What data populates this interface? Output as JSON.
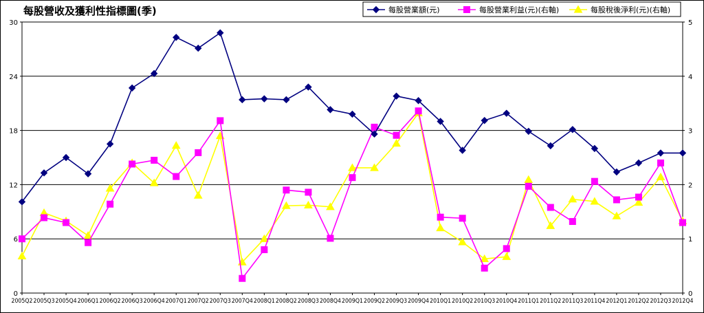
{
  "chart_data": {
    "type": "line",
    "title": "每股營收及獲利性指標圖(季)",
    "categories": [
      "2005Q2",
      "2005Q3",
      "2005Q4",
      "2006Q1",
      "2006Q2",
      "2006Q3",
      "2006Q4",
      "2007Q1",
      "2007Q2",
      "2007Q3",
      "2007Q4",
      "2008Q1",
      "2008Q2",
      "2008Q3",
      "2008Q4",
      "2009Q1",
      "2009Q2",
      "2009Q3",
      "2009Q4",
      "2010Q1",
      "2010Q2",
      "2010Q3",
      "2010Q4",
      "2011Q1",
      "2011Q2",
      "2011Q3",
      "2011Q4",
      "2012Q1",
      "2012Q2",
      "2012Q3",
      "2012Q4"
    ],
    "y_left": {
      "min": 0,
      "max": 30,
      "ticks": [
        0,
        6,
        12,
        18,
        24,
        30
      ]
    },
    "y_right": {
      "min": 0,
      "max": 5,
      "ticks": [
        0,
        1,
        2,
        3,
        4,
        5
      ]
    },
    "grid": true,
    "legend_position": "top-right",
    "series": [
      {
        "name": "每股營業額(元)",
        "axis": "left",
        "color": "#000080",
        "marker": "diamond",
        "values": [
          10.1,
          13.3,
          15.0,
          13.2,
          16.5,
          22.7,
          24.3,
          28.3,
          27.1,
          28.8,
          21.4,
          21.5,
          21.4,
          22.8,
          20.3,
          19.8,
          17.6,
          21.8,
          21.3,
          19.0,
          15.8,
          19.1,
          19.9,
          17.9,
          16.3,
          18.1,
          16.0,
          13.4,
          14.4,
          15.5,
          15.5
        ]
      },
      {
        "name": "每股營業利益(元)(右軸)",
        "axis": "right",
        "color": "#FF00FF",
        "marker": "square",
        "values": [
          1.0,
          1.39,
          1.3,
          0.93,
          1.64,
          2.38,
          2.45,
          2.15,
          2.59,
          3.18,
          0.27,
          0.8,
          1.9,
          1.86,
          1.01,
          2.13,
          3.06,
          2.91,
          3.36,
          1.4,
          1.38,
          0.46,
          0.82,
          1.97,
          1.58,
          1.32,
          2.06,
          1.72,
          1.77,
          2.4,
          1.3
        ]
      },
      {
        "name": "每股稅後淨利(元)(右軸)",
        "axis": "right",
        "color": "#FFFF00",
        "marker": "triangle",
        "values": [
          0.68,
          1.48,
          1.33,
          1.06,
          1.93,
          2.4,
          2.03,
          2.72,
          1.8,
          2.9,
          0.57,
          1.0,
          1.61,
          1.62,
          1.59,
          2.31,
          2.31,
          2.76,
          3.32,
          1.2,
          0.94,
          0.63,
          0.67,
          2.09,
          1.24,
          1.73,
          1.69,
          1.42,
          1.67,
          2.14,
          1.33
        ]
      }
    ]
  }
}
